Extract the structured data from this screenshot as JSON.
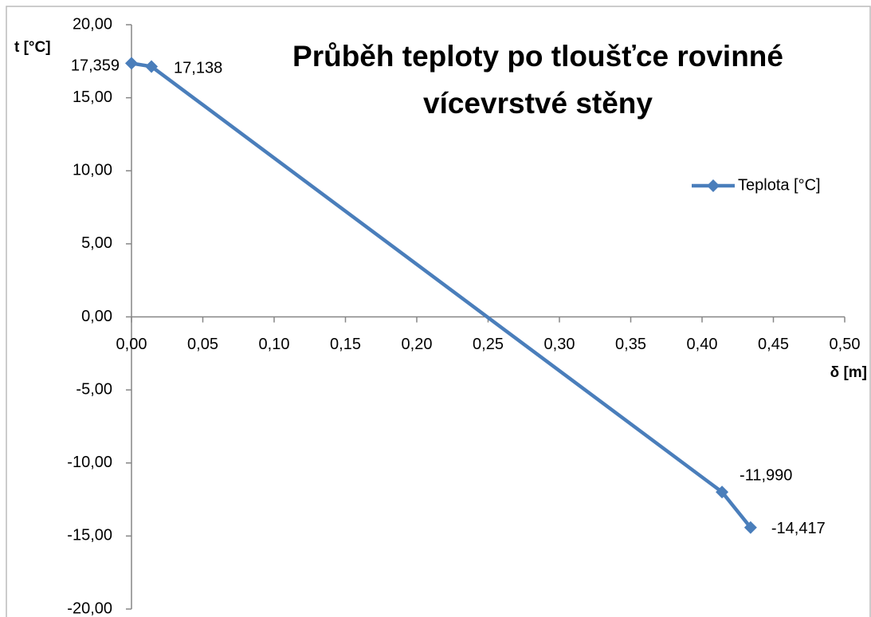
{
  "chart_data": {
    "type": "line",
    "title": [
      "Průběh teploty po tloušťce rovinné",
      "vícevrstvé stěny"
    ],
    "x_label": "δ [m]",
    "y_label": "t [°C]",
    "x": [
      0,
      0.014,
      0.414,
      0.434
    ],
    "series": [
      {
        "name": "Teplota [°C]",
        "color": "#4a7ebb",
        "values": [
          17.359,
          17.138,
          -11.99,
          -14.417
        ],
        "value_labels": [
          "17,359",
          "17,138",
          "-11,990",
          "-14,417"
        ]
      }
    ],
    "xlim": [
      0,
      0.5
    ],
    "xticks": [
      {
        "value": 0,
        "label": "0,00"
      },
      {
        "value": 0.05,
        "label": "0,05"
      },
      {
        "value": 0.1,
        "label": "0,10"
      },
      {
        "value": 0.15,
        "label": "0,15"
      },
      {
        "value": 0.2,
        "label": "0,20"
      },
      {
        "value": 0.25,
        "label": "0,25"
      },
      {
        "value": 0.3,
        "label": "0,30"
      },
      {
        "value": 0.35,
        "label": "0,35"
      },
      {
        "value": 0.4,
        "label": "0,40"
      },
      {
        "value": 0.45,
        "label": "0,45"
      },
      {
        "value": 0.5,
        "label": "0,50"
      }
    ],
    "ylim": [
      -20,
      20
    ],
    "yticks": [
      {
        "value": -20,
        "label": "-20,00"
      },
      {
        "value": -15,
        "label": "-15,00"
      },
      {
        "value": -10,
        "label": "-10,00"
      },
      {
        "value": -5,
        "label": "-5,00"
      },
      {
        "value": 0,
        "label": "0,00"
      },
      {
        "value": 5,
        "label": "5,00"
      },
      {
        "value": 10,
        "label": "10,00"
      },
      {
        "value": 15,
        "label": "15,00"
      },
      {
        "value": 20,
        "label": "20,00"
      }
    ],
    "grid": false,
    "legend": "right"
  }
}
